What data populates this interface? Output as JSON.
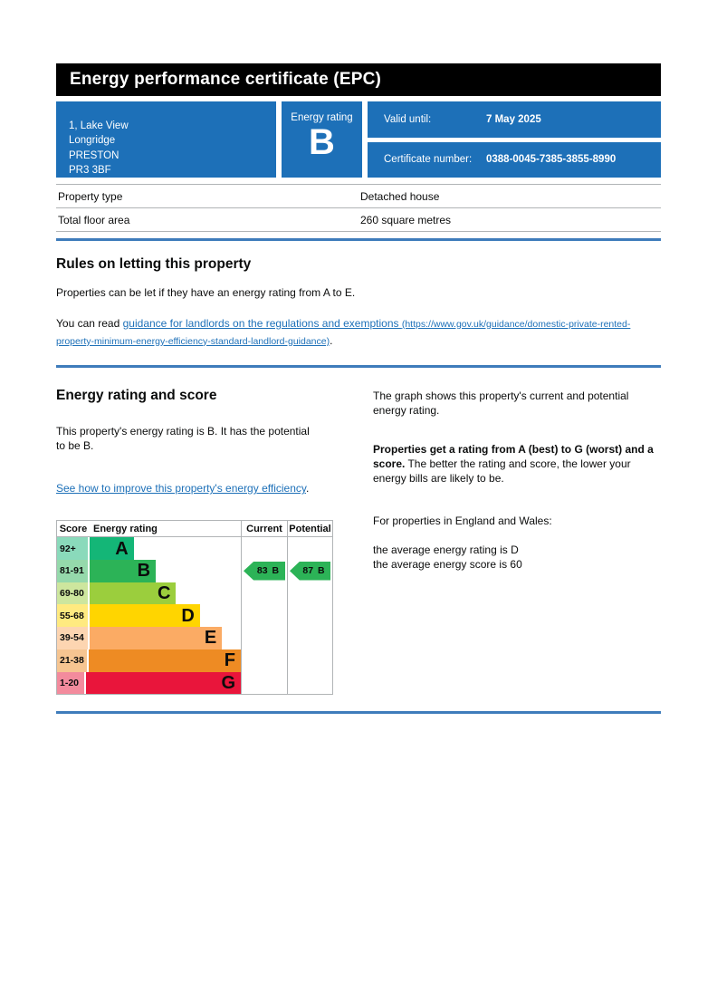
{
  "header": {
    "title": "Energy performance certificate (EPC)"
  },
  "summary": {
    "address_lines": [
      "1, Lake View",
      "Longridge",
      "PRESTON",
      "PR3 3BF"
    ],
    "energy_rating_label": "Energy rating",
    "energy_rating": "B",
    "valid_until_label": "Valid until:",
    "valid_until_value": "7 May 2025",
    "certificate_number_label": "Certificate number:",
    "certificate_number_value": "0388-0045-7385-3855-8990"
  },
  "property_table": {
    "rows": [
      {
        "label": "Property type",
        "value": "Detached house"
      },
      {
        "label": "Total floor area",
        "value": "260 square metres"
      }
    ]
  },
  "letting_rules": {
    "heading": "Rules on letting this property",
    "paragraph1": "Properties can be let if they have an energy rating from A to E.",
    "paragraph2_prefix": "You can read ",
    "link_text": "guidance for landlords on the regulations and exemptions",
    "link_url_text": "(https://www.gov.uk/guidance/domestic-private-rented-property-minimum-energy-efficiency-standard-landlord-guidance)",
    "paragraph2_suffix": "."
  },
  "rating_section": {
    "heading": "Energy rating and score",
    "intro": "This property's energy rating is B. It has the potential to be B.",
    "improve_link": "See how to improve this property's energy efficiency",
    "improve_link_suffix": ".",
    "right_para1": "The graph shows this property's current and potential energy rating.",
    "right_para2_bold": "Properties get a rating from A (best) to G (worst) and a score.",
    "right_para2_rest": " The better the rating and score, the lower your energy bills are likely to be.",
    "right_para3": "For properties in England and Wales:",
    "right_para4_line1": "the average energy rating is D",
    "right_para4_line2": "the average energy score is 60"
  },
  "chart_data": {
    "type": "epc-rating-band-chart",
    "headers": {
      "score": "Score",
      "rating": "Energy rating",
      "current": "Current",
      "potential": "Potential"
    },
    "bands": [
      {
        "score": "92+",
        "letter": "A",
        "width_pct": 24,
        "color": "#14b677",
        "score_bg": "#8adabb"
      },
      {
        "score": "81-91",
        "letter": "B",
        "width_pct": 36,
        "color": "#2cb357",
        "score_bg": "#95d9ab"
      },
      {
        "score": "69-80",
        "letter": "C",
        "width_pct": 47,
        "color": "#9bce3d",
        "score_bg": "#cde69e"
      },
      {
        "score": "55-68",
        "letter": "D",
        "width_pct": 60,
        "color": "#ffd500",
        "score_bg": "#ffea80"
      },
      {
        "score": "39-54",
        "letter": "E",
        "width_pct": 72,
        "color": "#fbab64",
        "score_bg": "#fdd5b1"
      },
      {
        "score": "21-38",
        "letter": "F",
        "width_pct": 84,
        "color": "#ee8b23",
        "score_bg": "#f6c591"
      },
      {
        "score": "1-20",
        "letter": "G",
        "width_pct": 96,
        "color": "#e9153b",
        "score_bg": "#f38b9d"
      }
    ],
    "current": {
      "score": "83",
      "letter": "B",
      "color": "#2cb357"
    },
    "potential": {
      "score": "87",
      "letter": "B",
      "color": "#2cb357"
    },
    "accent_colors": {
      "gov_blue": "#1d70b8",
      "rule_blue": "#3e7cbb",
      "border_gray": "#b1b4b6"
    }
  }
}
